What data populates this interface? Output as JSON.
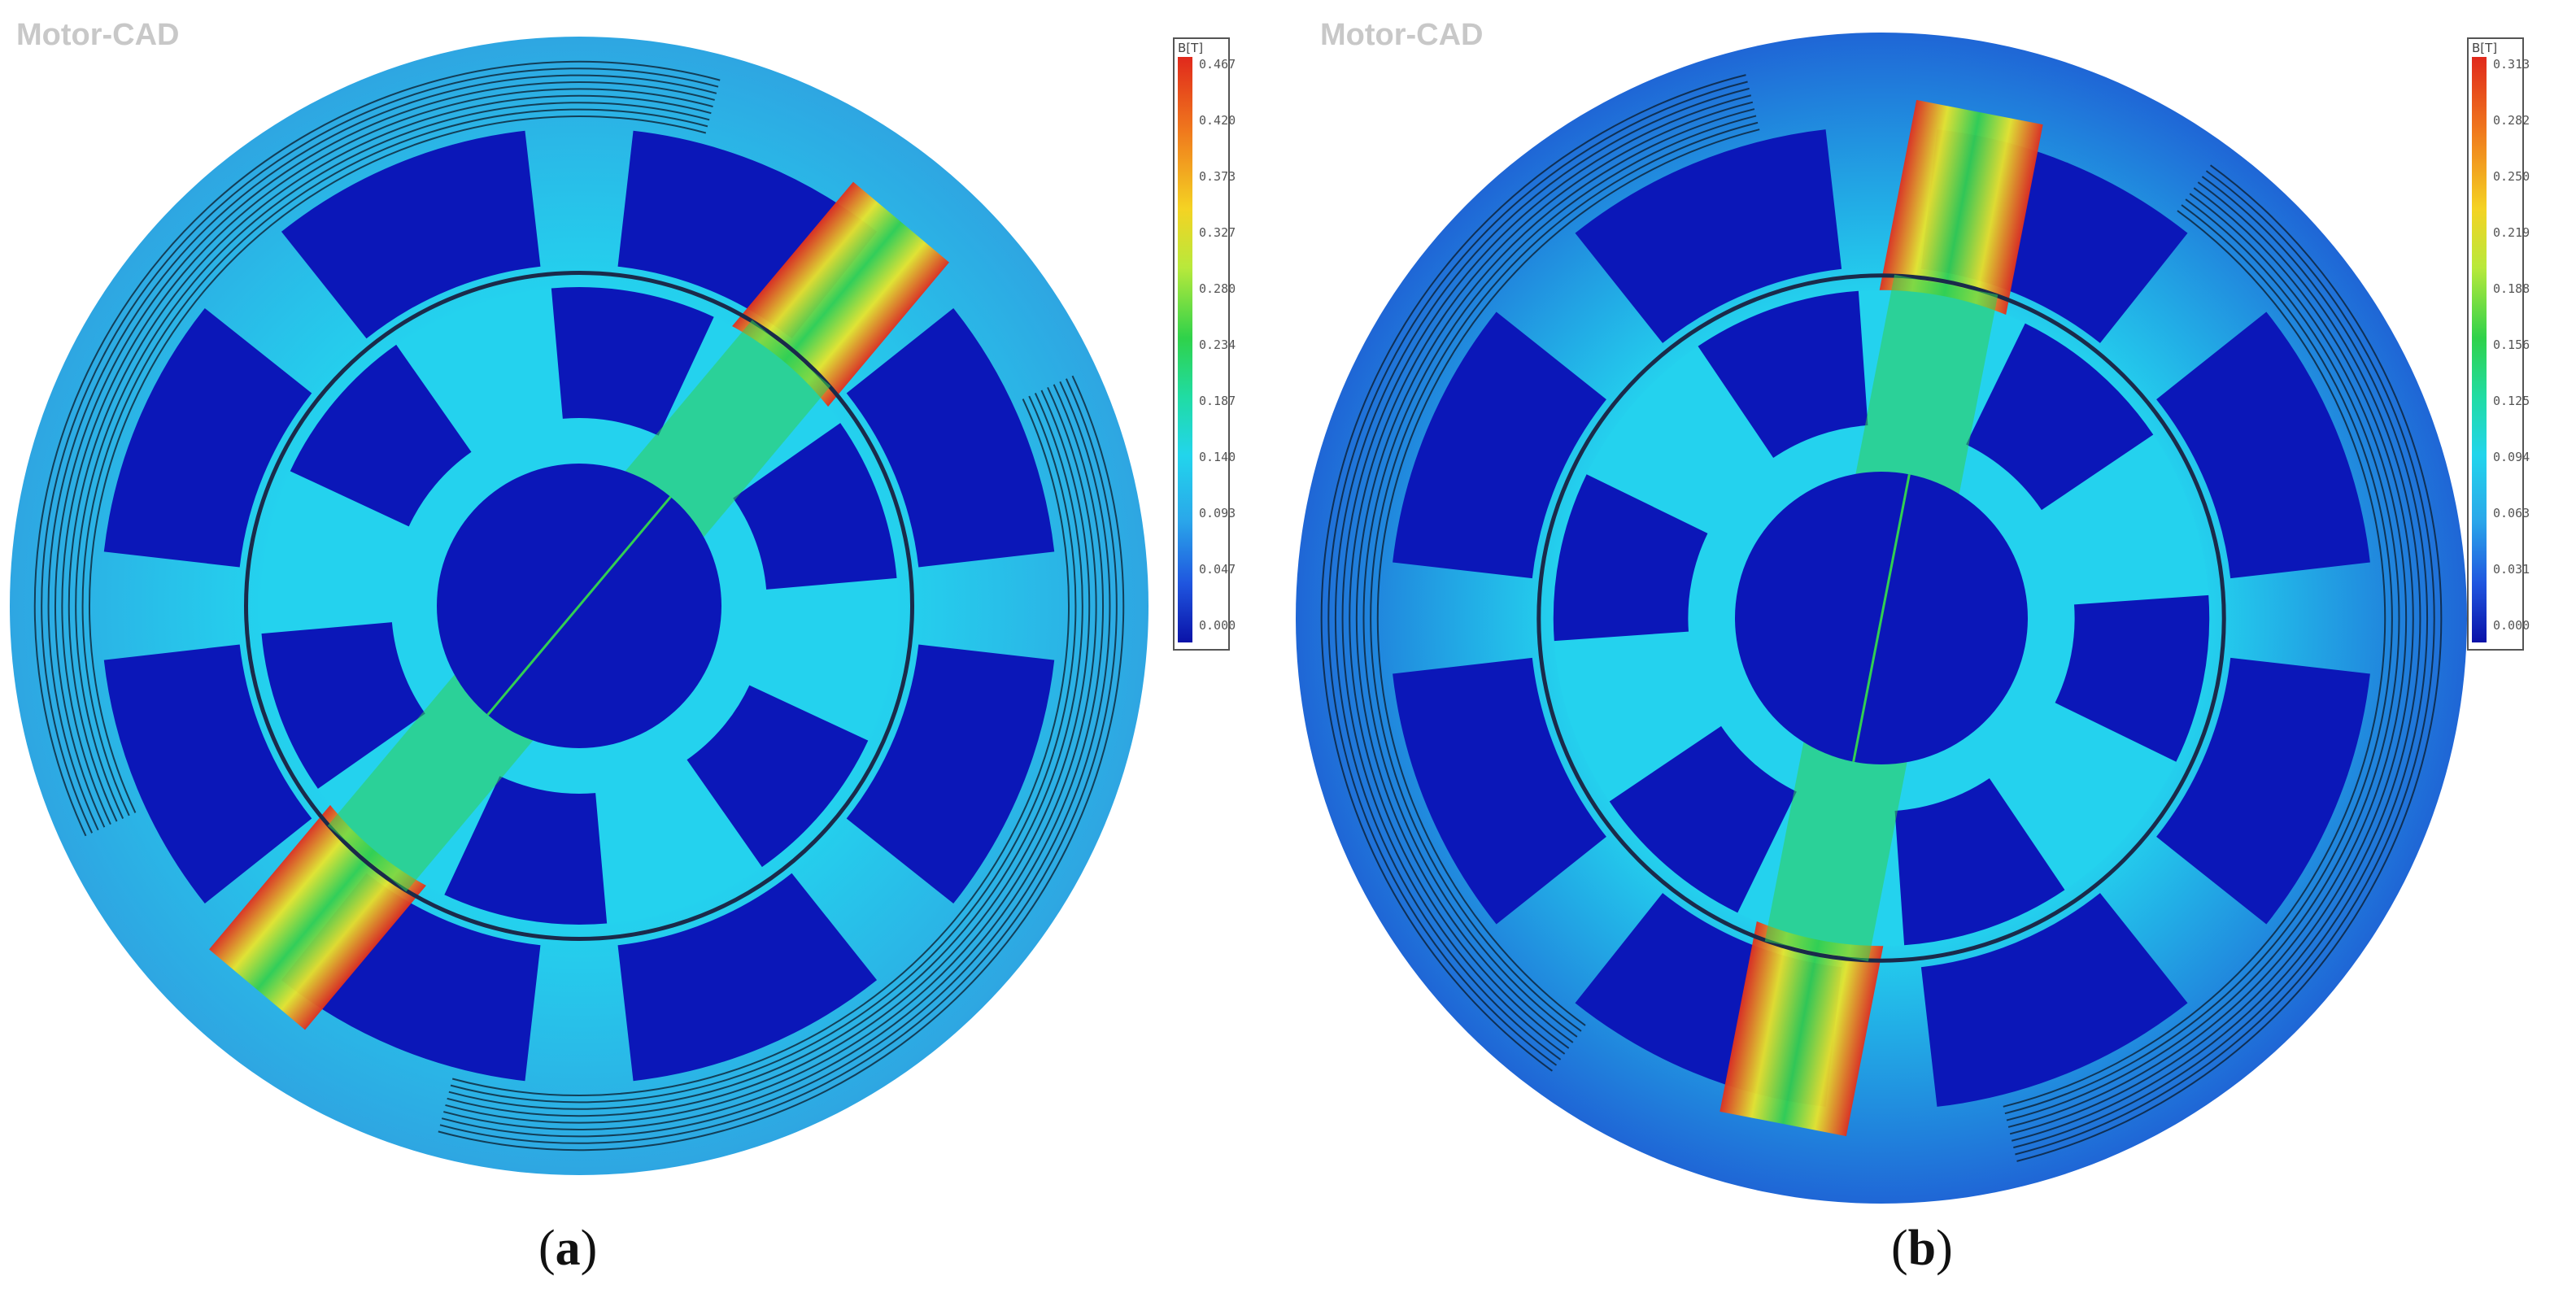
{
  "panel_a": {
    "brand": "Motor-CAD",
    "caption": "a",
    "colorbar": {
      "unit": "B[T]",
      "ticks": [
        "0.467",
        "0.420",
        "0.373",
        "0.327",
        "0.280",
        "0.234",
        "0.187",
        "0.140",
        "0.093",
        "0.047",
        "0.000"
      ]
    },
    "aligned_angle_deg": 50,
    "stator_teeth": 8,
    "rotor_poles": 6
  },
  "panel_b": {
    "brand": "Motor-CAD",
    "caption": "b",
    "colorbar": {
      "unit": "B[T]",
      "ticks": [
        "0.313",
        "0.282",
        "0.250",
        "0.219",
        "0.188",
        "0.156",
        "0.125",
        "0.094",
        "0.063",
        "0.031",
        "0.000"
      ]
    },
    "aligned_angle_deg": 79,
    "stator_teeth": 8,
    "rotor_poles": 6
  },
  "colors": {
    "air": "#0b17b8",
    "yoke": "#2ea6e2",
    "flux_high": "#e2301e",
    "flux_mid": "#32cf52",
    "flux_low": "#24d2ee",
    "field_line": "#0a1a2a"
  }
}
